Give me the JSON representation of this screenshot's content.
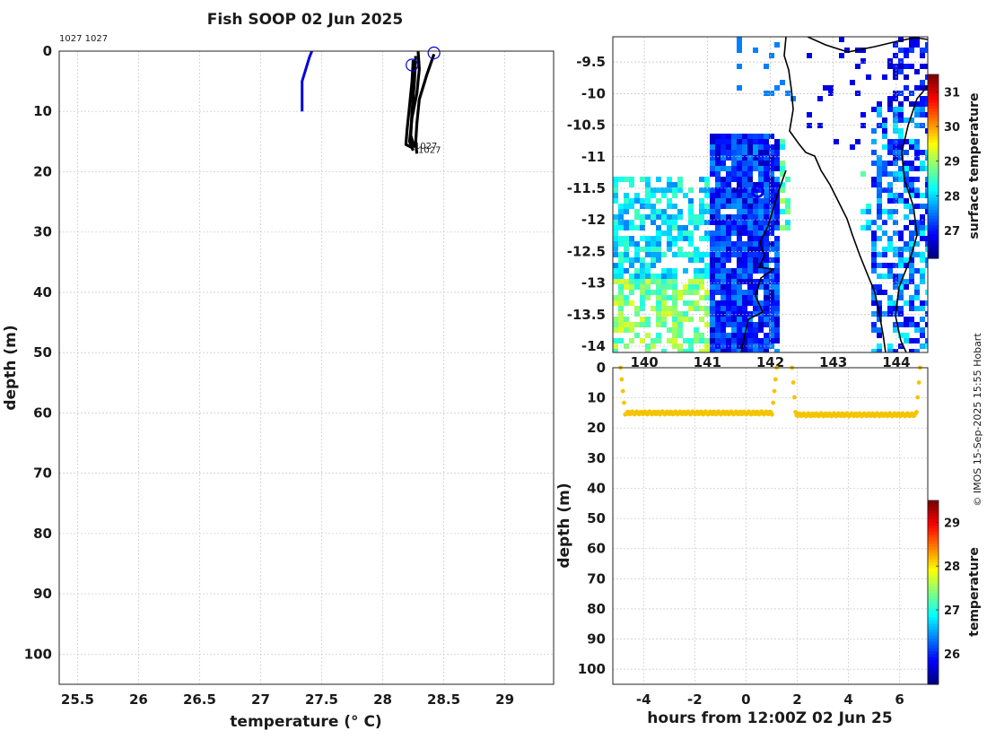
{
  "chart_data": [
    {
      "type": "line",
      "title": "Fish SOOP 02 Jun 2025",
      "top_note": "1027 1027",
      "xlabel": "temperature (° C)",
      "ylabel": "depth (m)",
      "xlim": [
        25.35,
        29.4
      ],
      "ylim": [
        105,
        0
      ],
      "x_ticks": [
        "25.5",
        "26",
        "26.5",
        "27",
        "27.5",
        "28",
        "28.5",
        "29"
      ],
      "y_ticks": [
        "0",
        "10",
        "20",
        "30",
        "40",
        "50",
        "60",
        "70",
        "80",
        "90",
        "100"
      ],
      "grid": true,
      "series": [
        {
          "color": "#0000dd",
          "points": [
            [
              27.42,
              0
            ],
            [
              27.4,
              1
            ],
            [
              27.34,
              5
            ],
            [
              27.34,
              7
            ],
            [
              27.34,
              10
            ]
          ]
        },
        {
          "color": "#000000",
          "points": [
            [
              28.42,
              0.5
            ],
            [
              28.36,
              4
            ],
            [
              28.3,
              8
            ],
            [
              28.28,
              12
            ],
            [
              28.27,
              15
            ],
            [
              28.28,
              17
            ]
          ]
        },
        {
          "color": "#000000",
          "points": [
            [
              28.25,
              1.5
            ],
            [
              28.24,
              5
            ],
            [
              28.22,
              9
            ],
            [
              28.2,
              13
            ],
            [
              28.19,
              15.5
            ],
            [
              28.24,
              16
            ]
          ]
        },
        {
          "color": "#000000",
          "points": [
            [
              28.29,
              0
            ],
            [
              28.3,
              3
            ],
            [
              28.28,
              7
            ],
            [
              28.24,
              11
            ],
            [
              28.22,
              15
            ],
            [
              28.25,
              16.5
            ]
          ]
        },
        {
          "color": "#000000",
          "points": [
            [
              28.27,
              0.8
            ],
            [
              28.26,
              5
            ],
            [
              28.24,
              10
            ],
            [
              28.23,
              14
            ],
            [
              28.26,
              16
            ]
          ]
        }
      ],
      "markers": [
        {
          "x": 28.24,
          "y": 2.3,
          "color": "#0000dd"
        },
        {
          "x": 28.42,
          "y": 0.3,
          "color": "#0000dd"
        }
      ],
      "labels": [
        {
          "x": 28.26,
          "y": 16.2,
          "text": "1027"
        },
        {
          "x": 28.29,
          "y": 16.9,
          "text": "1027"
        }
      ]
    },
    {
      "type": "heatmap",
      "xlim": [
        139.5,
        144.5
      ],
      "ylim": [
        -14.1,
        -9.1
      ],
      "x_ticks": [
        "140",
        "141",
        "142",
        "143",
        "144"
      ],
      "y_ticks": [
        "-9.5",
        "-10",
        "-10.5",
        "-11",
        "-11.5",
        "-12",
        "-12.5",
        "-13",
        "-13.5",
        "-14"
      ],
      "colorbar_label": "surface temperature",
      "colorbar_ticks": [
        "27",
        "28",
        "29",
        "30",
        "31"
      ],
      "clim": [
        26.2,
        31.5
      ],
      "current_position": {
        "lon": 141.8,
        "lat": -11.55
      }
    },
    {
      "type": "scatter",
      "xlabel": "hours from 12:00Z 02 Jun 25",
      "ylabel": "depth (m)",
      "xlim": [
        -5.2,
        7.1
      ],
      "ylim": [
        105,
        0
      ],
      "x_ticks": [
        "-4",
        "-2",
        "0",
        "2",
        "4",
        "6"
      ],
      "y_ticks": [
        "0",
        "10",
        "20",
        "30",
        "40",
        "50",
        "60",
        "70",
        "80",
        "90",
        "100"
      ],
      "color": "#f5c400",
      "segments": [
        {
          "start": -4.9,
          "end": 1.2,
          "bottom_depth": 15.6
        },
        {
          "start": 1.8,
          "end": 6.8,
          "bottom_depth": 16.2
        }
      ],
      "colorbar_label": "temperature",
      "colorbar_ticks": [
        "26",
        "27",
        "28",
        "29"
      ],
      "clim": [
        25.3,
        29.5
      ]
    }
  ],
  "credit": "© IMOS 15-Sep-2025 15:55 Hobart"
}
